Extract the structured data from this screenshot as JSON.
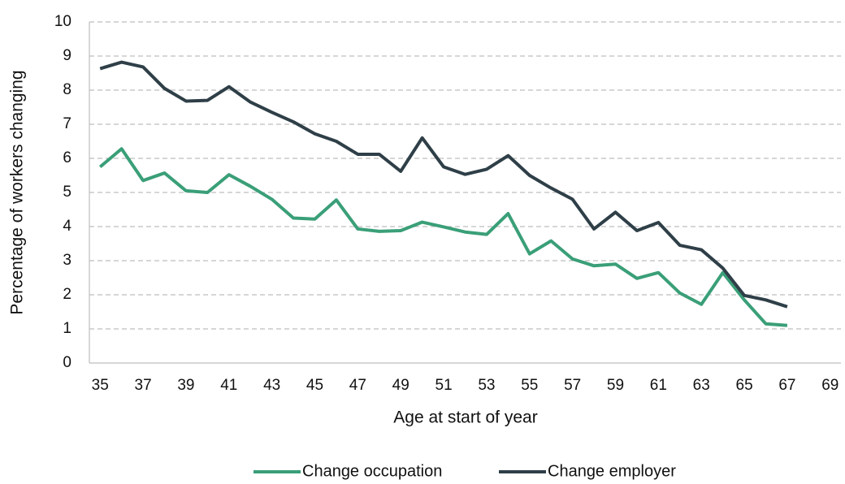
{
  "chart_data": {
    "type": "line",
    "x_label": "Age at start of year",
    "y_label": "Percentage of workers changing",
    "x": [
      35,
      36,
      37,
      38,
      39,
      40,
      41,
      42,
      43,
      44,
      45,
      46,
      47,
      48,
      49,
      50,
      51,
      52,
      53,
      54,
      55,
      56,
      57,
      58,
      59,
      60,
      61,
      62,
      63,
      64,
      65,
      66,
      67
    ],
    "series": [
      {
        "name": "Change occupation",
        "color": "#3a9f78",
        "values": [
          5.75,
          6.28,
          5.35,
          5.57,
          5.05,
          5.0,
          5.52,
          5.18,
          4.8,
          4.25,
          4.22,
          4.78,
          3.93,
          3.86,
          3.88,
          4.13,
          3.99,
          3.84,
          3.77,
          4.38,
          3.2,
          3.58,
          3.05,
          2.85,
          2.9,
          2.48,
          2.65,
          2.05,
          1.72,
          2.65,
          1.85,
          1.15,
          1.1
        ]
      },
      {
        "name": "Change employer",
        "color": "#2f3f48",
        "values": [
          8.63,
          8.82,
          8.68,
          8.05,
          7.68,
          7.7,
          8.1,
          7.65,
          7.35,
          7.07,
          6.72,
          6.5,
          6.12,
          6.12,
          5.62,
          6.6,
          5.75,
          5.53,
          5.68,
          6.08,
          5.5,
          5.13,
          4.8,
          3.93,
          4.42,
          3.88,
          4.12,
          3.45,
          3.32,
          2.78,
          1.98,
          1.85,
          1.65
        ]
      }
    ],
    "xlim": [
      34.5,
      69.5
    ],
    "xticks": [
      35,
      37,
      39,
      41,
      43,
      45,
      47,
      49,
      51,
      53,
      55,
      57,
      59,
      61,
      63,
      65,
      67,
      69
    ],
    "ylim": [
      0,
      10
    ],
    "yticks": [
      0,
      1,
      2,
      3,
      4,
      5,
      6,
      7,
      8,
      9,
      10
    ],
    "grid": true,
    "legend": "bottom"
  }
}
